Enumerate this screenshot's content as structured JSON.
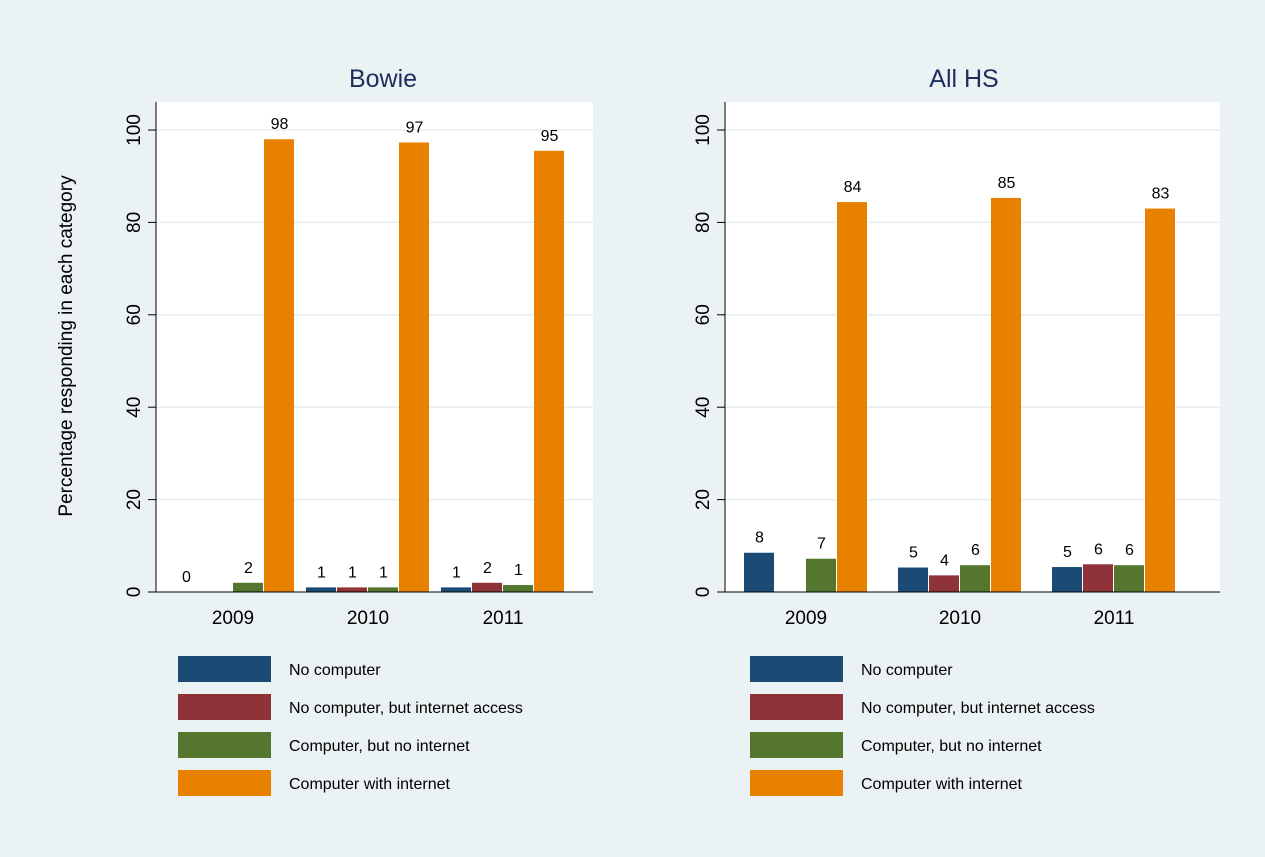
{
  "ylabel": "Percentage responding in each category",
  "legend": [
    {
      "label": "No computer",
      "color": "#1b4a75"
    },
    {
      "label": "No computer, but internet access",
      "color": "#903339"
    },
    {
      "label": "Computer, but no internet",
      "color": "#55762f"
    },
    {
      "label": "Computer with internet",
      "color": "#e88100"
    }
  ],
  "chart_data": [
    {
      "type": "bar",
      "title": "Bowie",
      "categories": [
        "2009",
        "2010",
        "2011"
      ],
      "ylabel": "Percentage responding in each category",
      "ylim": [
        0,
        100
      ],
      "yticks": [
        0,
        20,
        40,
        60,
        80,
        100
      ],
      "grid": true,
      "series": [
        {
          "name": "No computer",
          "values": [
            0,
            1,
            1
          ],
          "labels": [
            "0",
            "1",
            "1"
          ]
        },
        {
          "name": "No computer, but internet access",
          "values": [
            0,
            1,
            2
          ],
          "labels": [
            "",
            "1",
            "2"
          ]
        },
        {
          "name": "Computer, but no internet",
          "values": [
            2,
            1,
            1.5
          ],
          "labels": [
            "2",
            "1",
            "1"
          ]
        },
        {
          "name": "Computer with internet",
          "values": [
            98,
            97.3,
            95.5
          ],
          "labels": [
            "98",
            "97",
            "95"
          ]
        }
      ]
    },
    {
      "type": "bar",
      "title": "All HS",
      "categories": [
        "2009",
        "2010",
        "2011"
      ],
      "ylim": [
        0,
        100
      ],
      "yticks": [
        0,
        20,
        40,
        60,
        80,
        100
      ],
      "grid": true,
      "series": [
        {
          "name": "No computer",
          "values": [
            8.5,
            5.3,
            5.4
          ],
          "labels": [
            "8",
            "5",
            "5"
          ]
        },
        {
          "name": "No computer, but internet access",
          "values": [
            0,
            3.6,
            6
          ],
          "labels": [
            "",
            "4",
            "6"
          ]
        },
        {
          "name": "Computer, but no internet",
          "values": [
            7.2,
            5.8,
            5.8
          ],
          "labels": [
            "7",
            "6",
            "6"
          ]
        },
        {
          "name": "Computer with internet",
          "values": [
            84.4,
            85.3,
            83
          ],
          "labels": [
            "84",
            "85",
            "83"
          ]
        }
      ]
    }
  ]
}
